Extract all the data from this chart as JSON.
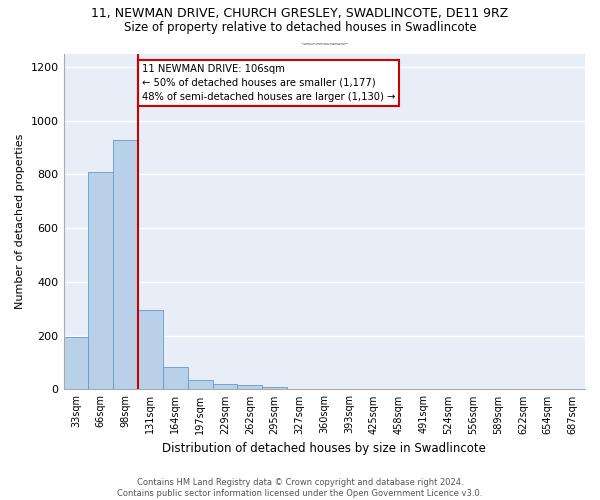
{
  "title": "11, NEWMAN DRIVE, CHURCH GRESLEY, SWADLINCOTE, DE11 9RZ",
  "subtitle": "Size of property relative to detached houses in Swadlincote",
  "xlabel": "Distribution of detached houses by size in Swadlincote",
  "ylabel": "Number of detached properties",
  "bin_labels": [
    "33sqm",
    "66sqm",
    "98sqm",
    "131sqm",
    "164sqm",
    "197sqm",
    "229sqm",
    "262sqm",
    "295sqm",
    "327sqm",
    "360sqm",
    "393sqm",
    "425sqm",
    "458sqm",
    "491sqm",
    "524sqm",
    "556sqm",
    "589sqm",
    "622sqm",
    "654sqm",
    "687sqm"
  ],
  "bar_values": [
    195,
    810,
    930,
    295,
    85,
    35,
    20,
    15,
    10,
    0,
    0,
    0,
    0,
    0,
    0,
    0,
    0,
    0,
    0,
    0,
    0
  ],
  "bar_color": "#b8d0e8",
  "bar_edge_color": "#6699cc",
  "highlight_line_color": "#cc0000",
  "annotation_text_line1": "11 NEWMAN DRIVE: 106sqm",
  "annotation_text_line2": "← 50% of detached houses are smaller (1,177)",
  "annotation_text_line3": "48% of semi-detached houses are larger (1,130) →",
  "annotation_box_color": "#cc0000",
  "annotation_fill": "white",
  "ylim": [
    0,
    1250
  ],
  "yticks": [
    0,
    200,
    400,
    600,
    800,
    1000,
    1200
  ],
  "background_color": "#e8eef8",
  "footer_line1": "Contains HM Land Registry data © Crown copyright and database right 2024.",
  "footer_line2": "Contains public sector information licensed under the Open Government Licence v3.0."
}
